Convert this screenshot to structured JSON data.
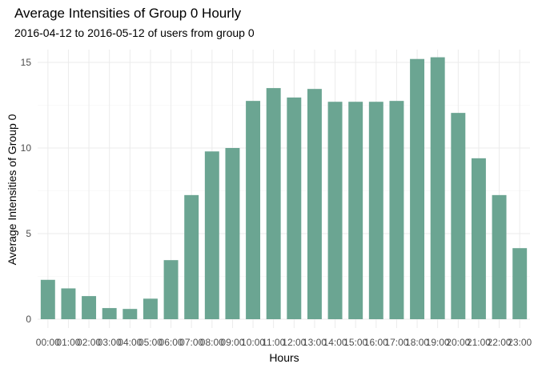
{
  "chart_data": {
    "type": "bar",
    "title": "Average Intensities of Group 0 Hourly",
    "subtitle": "2016-04-12 to 2016-05-12 of users from group 0",
    "xlabel": "Hours",
    "ylabel": "Average Intensities of Group 0",
    "categories": [
      "00:00",
      "01:00",
      "02:00",
      "03:00",
      "04:00",
      "05:00",
      "06:00",
      "07:00",
      "08:00",
      "09:00",
      "10:00",
      "11:00",
      "12:00",
      "13:00",
      "14:00",
      "15:00",
      "16:00",
      "17:00",
      "18:00",
      "19:00",
      "20:00",
      "21:00",
      "22:00",
      "23:00"
    ],
    "values": [
      2.3,
      1.8,
      1.35,
      0.65,
      0.6,
      1.2,
      3.45,
      7.25,
      9.8,
      10.0,
      12.75,
      13.5,
      12.95,
      13.45,
      12.7,
      12.7,
      12.7,
      12.75,
      15.2,
      15.3,
      12.05,
      9.4,
      7.25,
      4.15
    ],
    "yticks": [
      0,
      5,
      10,
      15
    ],
    "ylim": [
      0,
      15.5
    ],
    "bar_color": "#6ba592",
    "grid": true,
    "legend": "none"
  }
}
